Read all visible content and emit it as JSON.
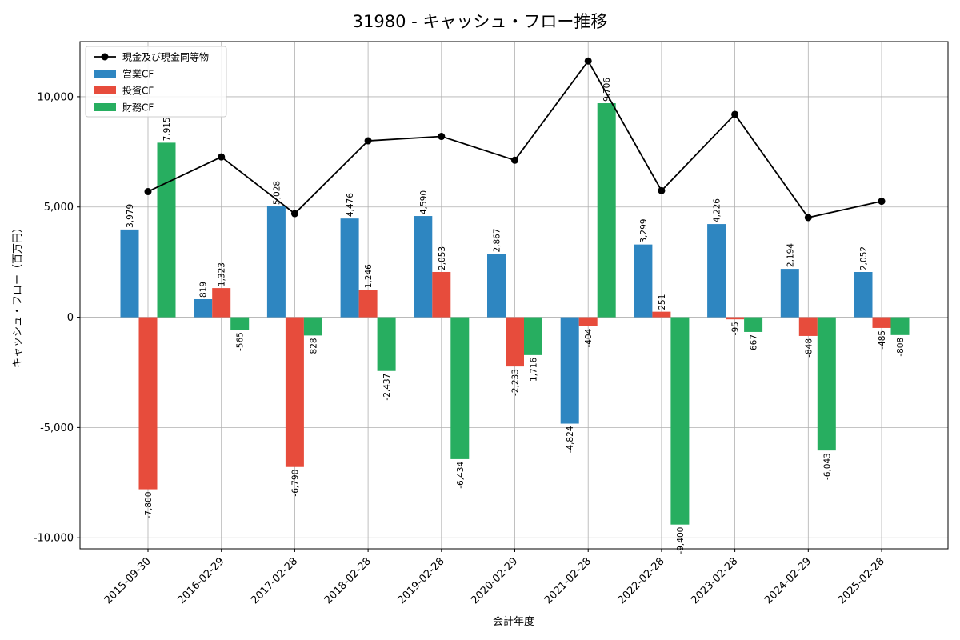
{
  "chart_data": {
    "type": "bar",
    "title": "31980 - キャッシュ・フロー推移",
    "xlabel": "会計年度",
    "ylabel": "キャッシュ・フロー（百万円）",
    "ylim": [
      -10500,
      12500
    ],
    "yticks": [
      -10000,
      -5000,
      0,
      5000,
      10000
    ],
    "ytick_labels": [
      "-10,000",
      "-5,000",
      "0",
      "5,000",
      "10,000"
    ],
    "grid": true,
    "legend_position": "top-left",
    "categories": [
      "2015-09-30",
      "2016-02-29",
      "2017-02-28",
      "2018-02-28",
      "2019-02-28",
      "2020-02-29",
      "2021-02-28",
      "2022-02-28",
      "2023-02-28",
      "2024-02-29",
      "2025-02-28"
    ],
    "series": [
      {
        "name": "営業CF",
        "kind": "bar",
        "color": "#2e86c1",
        "values": [
          3979,
          819,
          5028,
          4476,
          4590,
          2867,
          -4824,
          3299,
          4226,
          2194,
          2052
        ],
        "labels": [
          "3,979",
          "819",
          "5,028",
          "4,476",
          "4,590",
          "2,867",
          "-4,824",
          "3,299",
          "4,226",
          "2,194",
          "2,052"
        ]
      },
      {
        "name": "投資CF",
        "kind": "bar",
        "color": "#e74c3c",
        "values": [
          -7800,
          1323,
          -6790,
          1246,
          2053,
          -2233,
          -404,
          251,
          -95,
          -848,
          -485
        ],
        "labels": [
          "-7,800",
          "1,323",
          "-6,790",
          "1,246",
          "2,053",
          "-2,233",
          "-404",
          "251",
          "-95",
          "-848",
          "-485"
        ]
      },
      {
        "name": "財務CF",
        "kind": "bar",
        "color": "#27ae60",
        "values": [
          7915,
          -565,
          -828,
          -2437,
          -6434,
          -1716,
          9706,
          -9400,
          -667,
          -6043,
          -808
        ],
        "labels": [
          "7,915",
          "-565",
          "-828",
          "-2,437",
          "-6,434",
          "-1,716",
          "9,706",
          "-9,400",
          "-667",
          "-6,043",
          "-808"
        ]
      },
      {
        "name": "現金及び現金同等物",
        "kind": "line",
        "color": "#000000",
        "values": [
          5700,
          7270,
          4700,
          8000,
          8200,
          7120,
          11620,
          5740,
          9200,
          4520,
          5260
        ]
      }
    ]
  }
}
